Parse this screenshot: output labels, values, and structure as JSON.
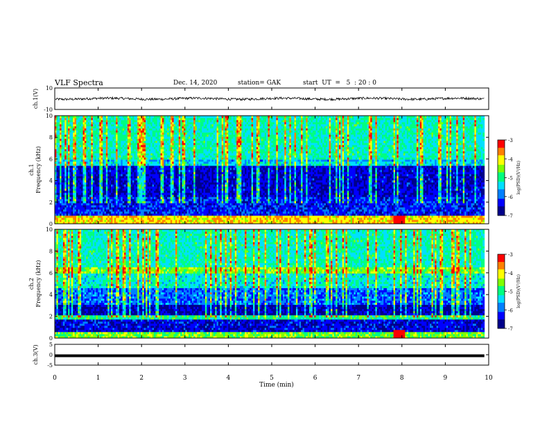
{
  "header": {
    "title": "VLF Spectra",
    "date": "Dec. 14, 2020",
    "station": "station= GAK",
    "start": "start  UT  =   5  : 20 : 0"
  },
  "chart_data": [
    {
      "type": "line",
      "panel": "ch1-waveform",
      "ylabel": "ch.1(V)",
      "ylim": [
        -10,
        10
      ],
      "yticks": [
        10,
        -10
      ],
      "xlim": [
        0,
        10
      ],
      "series": [
        {
          "color": "#000000"
        }
      ]
    },
    {
      "type": "heatmap",
      "panel": "ch1-spectrogram",
      "ylabel": "ch.1\nFrequency (kHz)",
      "ylim": [
        0,
        10
      ],
      "yticks": [
        0,
        2,
        4,
        6,
        8,
        10
      ],
      "xlim": [
        0,
        10
      ],
      "colorbar": {
        "label": "log(PSD)(V²/Hz)",
        "range": [
          -7,
          -3
        ],
        "ticks": [
          -3,
          -4,
          -5,
          -6,
          -7
        ]
      }
    },
    {
      "type": "heatmap",
      "panel": "ch2-spectrogram",
      "ylabel": "ch.2\nFrequency (kHz)",
      "ylim": [
        0,
        10
      ],
      "yticks": [
        0,
        2,
        4,
        6,
        8,
        10
      ],
      "xlim": [
        0,
        10
      ],
      "colorbar": {
        "label": "log(PSD)(V²/Hz)",
        "range": [
          -7,
          -3
        ],
        "ticks": [
          -3,
          -4,
          -5,
          -6,
          -7
        ]
      }
    },
    {
      "type": "line",
      "panel": "ch3-waveform",
      "ylabel": "ch.3(V)",
      "ylim": [
        -5,
        5
      ],
      "yticks": [
        5,
        0,
        -5
      ],
      "xlim": [
        0,
        10
      ],
      "series": [
        {
          "color": "#000000",
          "constant": -0.5
        }
      ]
    }
  ],
  "xaxis": {
    "label": "Time  (min)",
    "range": [
      0,
      10
    ],
    "ticks": [
      0,
      1,
      2,
      3,
      4,
      5,
      6,
      7,
      8,
      9,
      10
    ]
  },
  "colormap": [
    "#00008b",
    "#0000ff",
    "#0080ff",
    "#00e0ff",
    "#00ff80",
    "#80ff00",
    "#ffff00",
    "#ff8000",
    "#ff0000",
    "#ffffff"
  ]
}
